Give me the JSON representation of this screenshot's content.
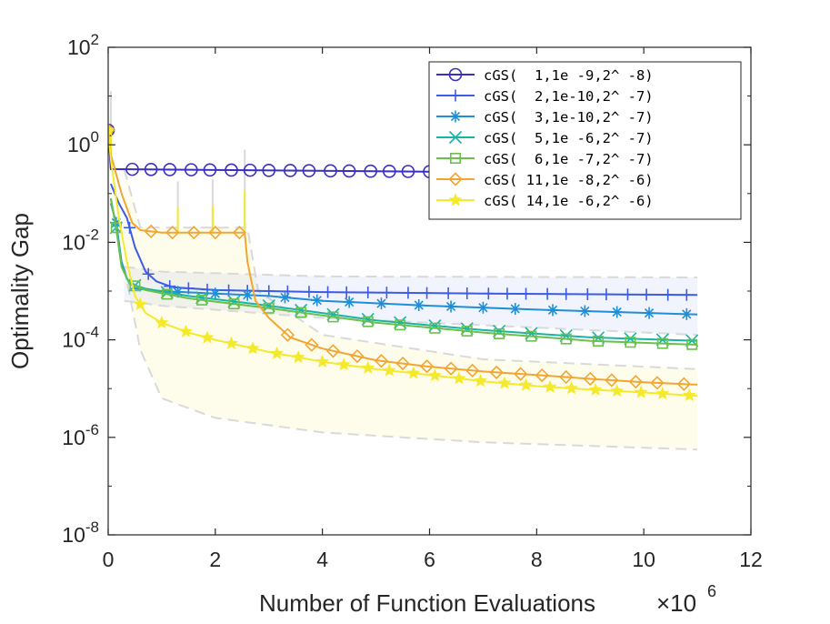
{
  "chart_data": {
    "type": "line",
    "title": "",
    "xlabel": "Number of Function Evaluations",
    "x_exponent_label": "×10",
    "x_exponent": "6",
    "ylabel": "Optimality Gap",
    "xlim": [
      0,
      12
    ],
    "ylim_log10": [
      -8,
      2
    ],
    "x_ticks": [
      "0",
      "2",
      "4",
      "6",
      "8",
      "10",
      "12"
    ],
    "x_tick_values": [
      0,
      2,
      4,
      6,
      8,
      10,
      12
    ],
    "y_ticks": [
      {
        "base": "10",
        "exp": "2"
      },
      {
        "base": "10",
        "exp": "0"
      },
      {
        "base": "10",
        "exp": "-2"
      },
      {
        "base": "10",
        "exp": "-4"
      },
      {
        "base": "10",
        "exp": "-6"
      },
      {
        "base": "10",
        "exp": "-8"
      }
    ],
    "y_tick_values": [
      2,
      0,
      -2,
      -4,
      -6,
      -8
    ],
    "grid": false,
    "legend_position": "top-right",
    "x_scale_note": "x values in units of 1e6 evaluations",
    "series": [
      {
        "name": "cGS(  1,1e -9,2^ -8)",
        "color": "#3a2fc0",
        "marker": "circle",
        "marker_x": [
          0,
          0.45,
          0.8,
          1.15,
          1.55,
          1.9,
          2.3,
          2.65,
          3.0,
          3.4,
          3.75,
          4.15,
          4.5,
          4.9,
          5.25,
          5.6,
          6.0
        ],
        "points": [
          [
            0,
            0.3
          ],
          [
            0.05,
            -0.5
          ],
          [
            0.2,
            -0.5
          ],
          [
            6.0,
            -0.55
          ]
        ]
      },
      {
        "name": "cGS(  2,1e-10,2^ -7)",
        "color": "#3c5ce6",
        "marker": "plus",
        "marker_x": [
          0.4,
          0.75,
          1.15,
          1.5,
          1.85,
          2.25,
          2.6,
          3.0,
          3.35,
          3.75,
          4.1,
          4.45,
          4.85,
          5.2,
          5.6,
          5.95,
          6.35,
          6.7,
          7.1,
          7.45,
          7.8,
          8.2,
          8.55,
          8.95,
          9.3,
          9.7,
          10.05,
          10.45,
          10.8
        ],
        "points": [
          [
            0.05,
            -0.8
          ],
          [
            0.2,
            -1.2
          ],
          [
            0.35,
            -1.5
          ],
          [
            0.5,
            -2.1
          ],
          [
            0.7,
            -2.6
          ],
          [
            0.9,
            -2.8
          ],
          [
            1.2,
            -2.92
          ],
          [
            2.0,
            -2.98
          ],
          [
            4.0,
            -3.02
          ],
          [
            7.0,
            -3.05
          ],
          [
            11.0,
            -3.08
          ]
        ]
      },
      {
        "name": "cGS(  3,1e-10,2^ -7)",
        "color": "#1f8fd6",
        "marker": "asterisk",
        "marker_x": [
          0.15,
          1.3,
          2.0,
          2.6,
          3.3,
          3.9,
          4.5,
          5.1,
          5.8,
          6.4,
          7.0,
          7.6,
          8.3,
          8.9,
          9.5,
          10.1,
          10.8
        ],
        "points": [
          [
            0.05,
            -1.2
          ],
          [
            0.15,
            -1.6
          ],
          [
            0.25,
            -2.4
          ],
          [
            0.35,
            -2.75
          ],
          [
            0.5,
            -2.95
          ],
          [
            1.0,
            -3.0
          ],
          [
            2.0,
            -3.05
          ],
          [
            3.0,
            -3.1
          ],
          [
            4.0,
            -3.2
          ],
          [
            6.0,
            -3.3
          ],
          [
            8.0,
            -3.38
          ],
          [
            11.0,
            -3.48
          ]
        ]
      },
      {
        "name": "cGS(  5,1e -6,2^ -7)",
        "color": "#19b4a8",
        "marker": "cross",
        "marker_x": [
          0.15,
          0.5,
          1.1,
          1.75,
          2.35,
          3.0,
          3.6,
          4.2,
          4.85,
          5.45,
          6.1,
          6.7,
          7.3,
          7.9,
          8.55,
          9.15,
          9.75,
          10.35,
          10.9
        ],
        "points": [
          [
            0.05,
            -1.1
          ],
          [
            0.15,
            -1.7
          ],
          [
            0.25,
            -2.5
          ],
          [
            0.4,
            -2.85
          ],
          [
            0.7,
            -2.95
          ],
          [
            1.5,
            -3.1
          ],
          [
            3.0,
            -3.3
          ],
          [
            5.0,
            -3.6
          ],
          [
            7.0,
            -3.8
          ],
          [
            9.0,
            -3.95
          ],
          [
            11.0,
            -4.02
          ]
        ]
      },
      {
        "name": "cGS(  6,1e -7,2^ -7)",
        "color": "#6cc04a",
        "marker": "square",
        "marker_x": [
          0.15,
          0.5,
          1.1,
          1.75,
          2.35,
          3.0,
          3.6,
          4.2,
          4.85,
          5.45,
          6.1,
          6.7,
          7.3,
          7.9,
          8.55,
          9.15,
          9.75,
          10.35,
          10.9
        ],
        "points": [
          [
            0.05,
            -1.1
          ],
          [
            0.15,
            -1.7
          ],
          [
            0.25,
            -2.5
          ],
          [
            0.4,
            -2.85
          ],
          [
            0.7,
            -2.98
          ],
          [
            1.5,
            -3.15
          ],
          [
            3.0,
            -3.35
          ],
          [
            5.0,
            -3.65
          ],
          [
            7.0,
            -3.85
          ],
          [
            9.0,
            -4.02
          ],
          [
            11.0,
            -4.1
          ]
        ]
      },
      {
        "name": "cGS( 11,1e -8,2^ -6)",
        "color": "#f2a531",
        "marker": "diamond",
        "marker_x": [
          0,
          0.8,
          1.2,
          1.6,
          2.0,
          2.45,
          3.35,
          3.8,
          4.2,
          4.65,
          5.1,
          5.5,
          5.95,
          6.4,
          6.8,
          7.25,
          7.7,
          8.1,
          8.55,
          9.0,
          9.4,
          9.85,
          10.25,
          10.75
        ],
        "points": [
          [
            0,
            0.3
          ],
          [
            0.05,
            -0.2
          ],
          [
            0.25,
            -1.0
          ],
          [
            0.45,
            -1.6
          ],
          [
            0.6,
            -1.75
          ],
          [
            1.0,
            -1.8
          ],
          [
            2.55,
            -1.8
          ],
          [
            2.6,
            -2.4
          ],
          [
            2.75,
            -3.2
          ],
          [
            3.0,
            -3.55
          ],
          [
            3.4,
            -3.95
          ],
          [
            4.0,
            -4.18
          ],
          [
            5.0,
            -4.42
          ],
          [
            6.0,
            -4.55
          ],
          [
            7.0,
            -4.65
          ],
          [
            8.0,
            -4.72
          ],
          [
            9.0,
            -4.8
          ],
          [
            10.0,
            -4.87
          ],
          [
            11.0,
            -4.92
          ]
        ]
      },
      {
        "name": "cGS( 14,1e -6,2^ -6)",
        "color": "#f5e92c",
        "marker": "star",
        "marker_x": [
          0,
          0.6,
          1.0,
          1.45,
          1.85,
          2.3,
          2.7,
          3.15,
          3.55,
          4.0,
          4.4,
          4.85,
          5.25,
          5.7,
          6.1,
          6.55,
          6.95,
          7.4,
          7.8,
          8.25,
          8.65,
          9.1,
          9.5,
          9.95,
          10.35,
          10.85
        ],
        "points": [
          [
            0,
            0.3
          ],
          [
            0.05,
            -0.3
          ],
          [
            0.2,
            -1.5
          ],
          [
            0.35,
            -2.4
          ],
          [
            0.5,
            -3.1
          ],
          [
            0.7,
            -3.45
          ],
          [
            1.0,
            -3.65
          ],
          [
            1.5,
            -3.85
          ],
          [
            2.0,
            -4.0
          ],
          [
            3.0,
            -4.25
          ],
          [
            4.0,
            -4.45
          ],
          [
            5.0,
            -4.6
          ],
          [
            6.0,
            -4.72
          ],
          [
            7.0,
            -4.85
          ],
          [
            8.0,
            -4.95
          ],
          [
            9.0,
            -5.02
          ],
          [
            10.0,
            -5.08
          ],
          [
            11.0,
            -5.15
          ]
        ]
      }
    ],
    "spikes": [
      {
        "series": "cGS( 14,1e -6,2^ -6)",
        "x": 1.3,
        "from": -1.8,
        "to": -0.75
      },
      {
        "series": "cGS( 14,1e -6,2^ -6)",
        "x": 1.95,
        "from": -1.8,
        "to": -0.7
      },
      {
        "series": "cGS( 14,1e -6,2^ -6)",
        "x": 2.55,
        "from": -1.8,
        "to": -0.1
      },
      {
        "series": "cGS( 14,1e -6,2^ -6)",
        "x": 0.05,
        "from": -0.3,
        "to": 1.1
      }
    ],
    "bands": [
      {
        "series": "cGS( 14,1e -6,2^ -6)",
        "upper": [
          [
            0.3,
            -0.5
          ],
          [
            0.6,
            -1.7
          ],
          [
            2.6,
            -1.7
          ],
          [
            2.8,
            -3.0
          ],
          [
            4.0,
            -3.9
          ],
          [
            7.0,
            -4.4
          ],
          [
            11.0,
            -4.6
          ]
        ],
        "lower": [
          [
            0.3,
            -2.5
          ],
          [
            0.6,
            -4.2
          ],
          [
            1.0,
            -5.2
          ],
          [
            2.0,
            -5.6
          ],
          [
            4.0,
            -5.9
          ],
          [
            7.0,
            -6.1
          ],
          [
            11.0,
            -6.25
          ]
        ]
      },
      {
        "series": "cGS(  2,1e-10,2^ -7)",
        "upper": [
          [
            0.3,
            -2.5
          ],
          [
            1.0,
            -2.6
          ],
          [
            4.0,
            -2.7
          ],
          [
            11.0,
            -2.72
          ]
        ],
        "lower": [
          [
            0.3,
            -3.2
          ],
          [
            1.0,
            -3.3
          ],
          [
            4.0,
            -3.55
          ],
          [
            11.0,
            -3.9
          ]
        ]
      }
    ]
  }
}
